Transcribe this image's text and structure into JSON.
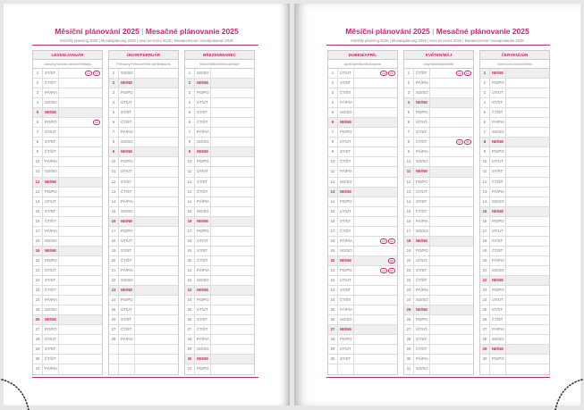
{
  "title_cz": "Měsíční plánování 2025",
  "title_sk": "Mesačné plánovanie 2025",
  "title_separator": "|",
  "subtitle": "Monthly planning 2025 | Monatsplanung 2025 | Havi tervezés 2025 | Ежемесячное планирование 2025",
  "accent_color": "#c4286e",
  "pages": [
    {
      "months": [
        {
          "name": "LEDEN/JANUÁR",
          "sub": "January/Januar/Január/Январь",
          "start": 2,
          "len": 31,
          "holidays": {
            "1": [
              "CZ",
              "SK"
            ],
            "6": [
              "SK"
            ]
          }
        },
        {
          "name": "ÚNOR/FEBRUÁR",
          "sub": "February/Februar/Február/Февраль",
          "start": 5,
          "len": 28,
          "holidays": {}
        },
        {
          "name": "BŘEZEN/MAREC",
          "sub": "March/März/Március/Март",
          "start": 5,
          "len": 31,
          "holidays": {}
        }
      ]
    },
    {
      "months": [
        {
          "name": "DUBEN/APRÍL",
          "sub": "April/April/Április/Апрель",
          "start": 1,
          "len": 30,
          "holidays": {
            "1": [
              "CZ",
              "SK"
            ],
            "18": [
              "CZ",
              "SK"
            ],
            "20": [
              "SK"
            ],
            "21": [
              "CZ",
              "SK"
            ]
          }
        },
        {
          "name": "KVĚTEN/MÁJ",
          "sub": "May/Mai/Május/Май",
          "start": 3,
          "len": 31,
          "holidays": {
            "1": [
              "CZ",
              "SK"
            ],
            "8": [
              "CZ",
              "SK"
            ]
          }
        },
        {
          "name": "ČERVEN/JÚN",
          "sub": "June/Juni/Június/Июнь",
          "start": 6,
          "len": 30,
          "holidays": {}
        }
      ]
    }
  ],
  "weekdays": [
    "PO/PO",
    "ÚT/UT",
    "ST/ST",
    "ČT/ŠT",
    "PÁ/PIA",
    "SO/SO",
    "NE/NE"
  ]
}
